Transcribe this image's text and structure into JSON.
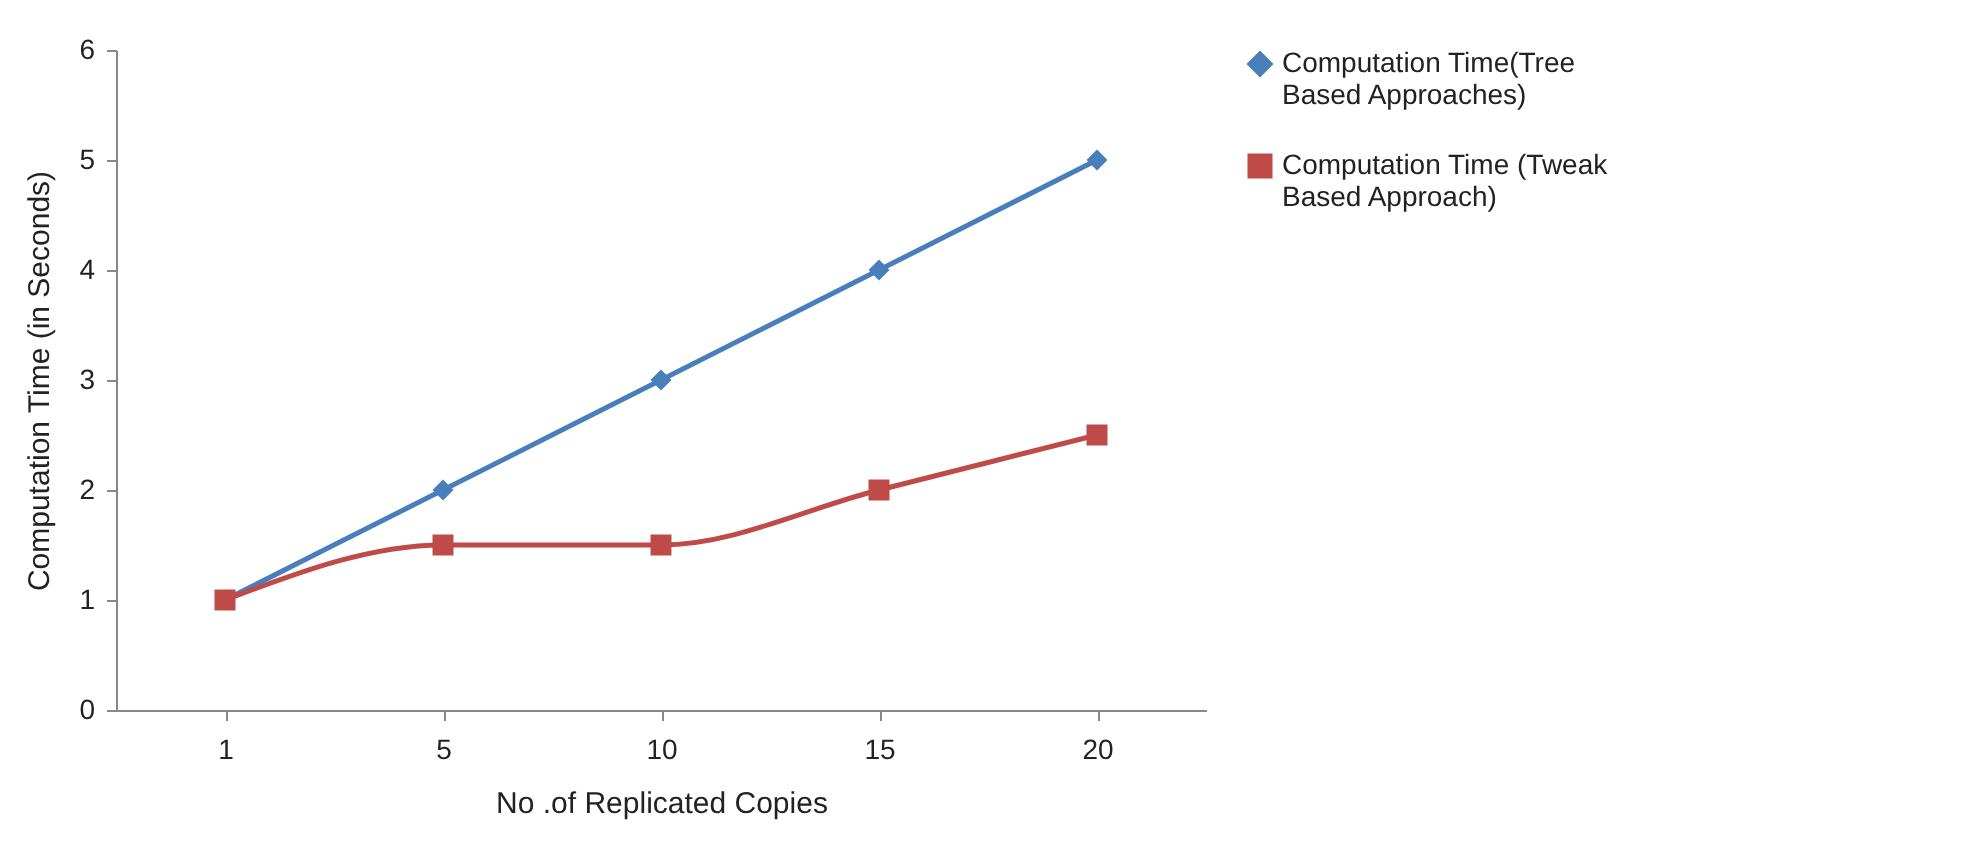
{
  "chart_data": {
    "type": "line",
    "xlabel": "No .of Replicated Copies",
    "ylabel": "Computation Time (in Seconds)",
    "categories": [
      "1",
      "5",
      "10",
      "15",
      "20"
    ],
    "series": [
      {
        "name": "Computation Time(Tree Based Approaches)",
        "color": "#4a7ebb",
        "marker": "diamond",
        "values": [
          1,
          2,
          3,
          4,
          5
        ]
      },
      {
        "name": "Computation Time  (Tweak Based Approach)",
        "color": "#be4b48",
        "marker": "square",
        "values": [
          1,
          1.5,
          1.5,
          2,
          2.5
        ]
      }
    ],
    "ylim": [
      0,
      6
    ],
    "yticks": [
      0,
      1,
      2,
      3,
      4,
      5,
      6
    ],
    "grid": false,
    "legend": "right"
  }
}
